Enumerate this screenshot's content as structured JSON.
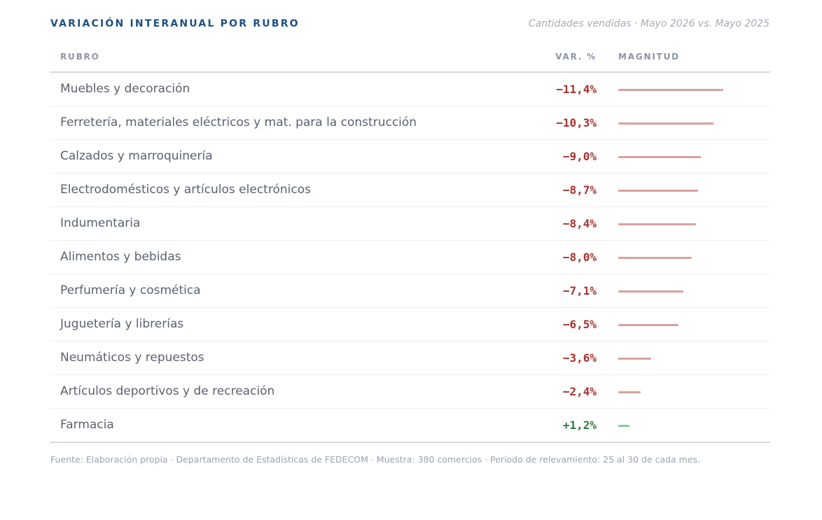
{
  "title": "VARIACIÓN INTERANUAL POR RUBRO",
  "subtitle": "Cantidades vendidas · Mayo 2026 vs. Mayo 2025",
  "columns": {
    "rubro": "RUBRO",
    "var": "VAR. %",
    "magnitud": "MAGNITUD"
  },
  "colors": {
    "negative": "#a8322d",
    "positive": "#2f7a3f",
    "negative_bar": "#dba0a0",
    "positive_bar": "#8fc69d"
  },
  "chart_data": {
    "type": "bar",
    "orientation": "horizontal",
    "categories": [
      "Muebles y decoración",
      "Ferretería, materiales eléctricos y mat. para la construcción",
      "Calzados y marroquinería",
      "Electrodomésticos y artículos electrónicos",
      "Indumentaria",
      "Alimentos y bebidas",
      "Perfumería y cosmética",
      "Juguetería y librerías",
      "Neumáticos y repuestos",
      "Artículos deportivos y de recreación",
      "Farmacia"
    ],
    "values": [
      -11.4,
      -10.3,
      -9.0,
      -8.7,
      -8.4,
      -8.0,
      -7.1,
      -6.5,
      -3.6,
      -2.4,
      1.2
    ],
    "labels": [
      "−11,4%",
      "−10,3%",
      "−9,0%",
      "−8,7%",
      "−8,4%",
      "−8,0%",
      "−7,1%",
      "−6,5%",
      "−3,6%",
      "−2,4%",
      "+1,2%"
    ],
    "magnitude_max": 11.4
  },
  "footer": "Fuente: Elaboración propia · Departamento de Estadísticas de FEDECOM · Muestra: 380 comercios · Período de relevamiento: 25 al 30 de cada mes."
}
